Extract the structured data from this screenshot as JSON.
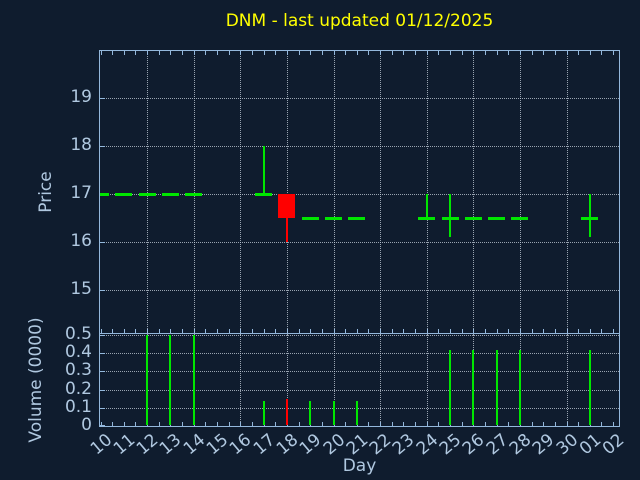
{
  "title": "DNM - last updated 01/12/2025",
  "colors": {
    "background": "#0f1c2e",
    "up": "#00e600",
    "down": "#ff0000",
    "title_text": "#ffff00",
    "axis_text": "#b0c8e0",
    "axis_line": "#94b8dc",
    "grid": "#c7d2dd"
  },
  "chart_data": [
    {
      "type": "candlestick",
      "title": "DNM - last updated 01/12/2025",
      "xlabel": "",
      "ylabel": "Price",
      "categories": [
        "10",
        "11",
        "12",
        "13",
        "14",
        "15",
        "16",
        "17",
        "18",
        "19",
        "20",
        "21",
        "22",
        "23",
        "24",
        "25",
        "26",
        "27",
        "28",
        "29",
        "30",
        "01",
        "02"
      ],
      "yticks": [
        15,
        16,
        17,
        18,
        19
      ],
      "ylim": [
        14.1,
        19.95
      ],
      "grid": true,
      "gridline_days": [
        "12",
        "14",
        "16",
        "18",
        "20",
        "22",
        "24",
        "26",
        "28",
        "30"
      ],
      "candles": [
        {
          "day": "10",
          "open": 17.0,
          "high": 17.0,
          "low": 17.0,
          "close": 17.0,
          "dir": "up"
        },
        {
          "day": "11",
          "open": 17.0,
          "high": 17.0,
          "low": 17.0,
          "close": 17.0,
          "dir": "up"
        },
        {
          "day": "12",
          "open": 17.0,
          "high": 17.0,
          "low": 17.0,
          "close": 17.0,
          "dir": "up"
        },
        {
          "day": "13",
          "open": 17.0,
          "high": 17.0,
          "low": 17.0,
          "close": 17.0,
          "dir": "up"
        },
        {
          "day": "14",
          "open": 17.0,
          "high": 17.0,
          "low": 17.0,
          "close": 17.0,
          "dir": "up"
        },
        {
          "day": "17",
          "open": 17.0,
          "high": 18.0,
          "low": 17.0,
          "close": 17.0,
          "dir": "up"
        },
        {
          "day": "18",
          "open": 17.0,
          "high": 17.0,
          "low": 16.0,
          "close": 16.5,
          "dir": "down"
        },
        {
          "day": "19",
          "open": 16.5,
          "high": 16.5,
          "low": 16.5,
          "close": 16.5,
          "dir": "up"
        },
        {
          "day": "20",
          "open": 16.5,
          "high": 16.5,
          "low": 16.5,
          "close": 16.5,
          "dir": "up"
        },
        {
          "day": "21",
          "open": 16.5,
          "high": 16.5,
          "low": 16.5,
          "close": 16.5,
          "dir": "up"
        },
        {
          "day": "24",
          "open": 16.5,
          "high": 17.0,
          "low": 16.5,
          "close": 16.5,
          "dir": "up"
        },
        {
          "day": "25",
          "open": 16.5,
          "high": 17.0,
          "low": 16.1,
          "close": 16.5,
          "dir": "up"
        },
        {
          "day": "26",
          "open": 16.5,
          "high": 16.5,
          "low": 16.5,
          "close": 16.5,
          "dir": "up"
        },
        {
          "day": "27",
          "open": 16.5,
          "high": 16.5,
          "low": 16.5,
          "close": 16.5,
          "dir": "up"
        },
        {
          "day": "28",
          "open": 16.5,
          "high": 16.5,
          "low": 16.5,
          "close": 16.5,
          "dir": "up"
        },
        {
          "day": "01",
          "open": 16.5,
          "high": 17.0,
          "low": 16.1,
          "close": 16.5,
          "dir": "up"
        }
      ]
    },
    {
      "type": "bar",
      "xlabel": "Day",
      "ylabel": "Volume (0000)",
      "categories": [
        "10",
        "11",
        "12",
        "13",
        "14",
        "15",
        "16",
        "17",
        "18",
        "19",
        "20",
        "21",
        "22",
        "23",
        "24",
        "25",
        "26",
        "27",
        "28",
        "29",
        "30",
        "01",
        "02"
      ],
      "yticks": [
        0,
        0.1,
        0.2,
        0.3,
        0.4,
        0.5
      ],
      "ylim": [
        0,
        0.5
      ],
      "grid": true,
      "bars": [
        {
          "day": "12",
          "value": 0.5,
          "dir": "up"
        },
        {
          "day": "13",
          "value": 0.5,
          "dir": "up"
        },
        {
          "day": "14",
          "value": 0.5,
          "dir": "up"
        },
        {
          "day": "17",
          "value": 0.14,
          "dir": "up"
        },
        {
          "day": "18",
          "value": 0.15,
          "dir": "down"
        },
        {
          "day": "19",
          "value": 0.14,
          "dir": "up"
        },
        {
          "day": "20",
          "value": 0.14,
          "dir": "up"
        },
        {
          "day": "21",
          "value": 0.14,
          "dir": "up"
        },
        {
          "day": "25",
          "value": 0.42,
          "dir": "up"
        },
        {
          "day": "26",
          "value": 0.42,
          "dir": "up"
        },
        {
          "day": "27",
          "value": 0.42,
          "dir": "up"
        },
        {
          "day": "28",
          "value": 0.42,
          "dir": "up"
        },
        {
          "day": "01",
          "value": 0.42,
          "dir": "up"
        }
      ]
    }
  ]
}
